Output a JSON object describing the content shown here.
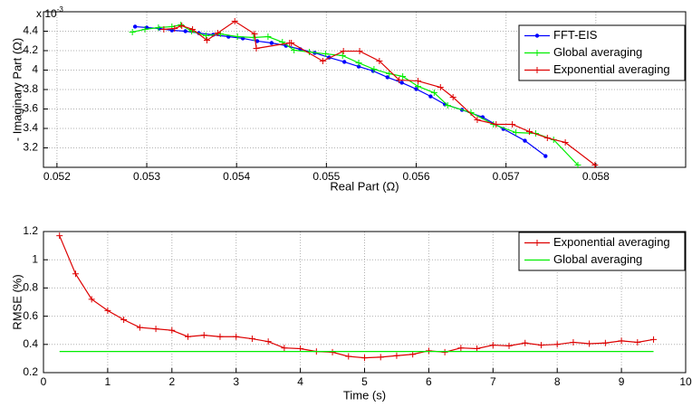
{
  "chart_data": [
    {
      "type": "line",
      "xlabel": "Real Part (Ω)",
      "ylabel": "- Imaginary Part (Ω)",
      "y_multiplier": {
        "base": "x 10",
        "exponent": "-3"
      },
      "xlim": [
        0.05185,
        0.059
      ],
      "ylim": [
        0.003,
        0.0046
      ],
      "xticks": [
        0.052,
        0.053,
        0.054,
        0.055,
        0.056,
        0.057,
        0.058
      ],
      "yticks": [
        {
          "value": 0.0032,
          "label": "3.2"
        },
        {
          "value": 0.0034,
          "label": "3.4"
        },
        {
          "value": 0.0036,
          "label": "3.6"
        },
        {
          "value": 0.0038,
          "label": "3.8"
        },
        {
          "value": 0.004,
          "label": "4"
        },
        {
          "value": 0.0042,
          "label": "4.2"
        },
        {
          "value": 0.0044,
          "label": "4.4"
        }
      ],
      "grid": true,
      "legend": "northeast",
      "series": [
        {
          "name": "FFT-EIS",
          "color": "#0000ff",
          "marker": "dot",
          "x": [
            0.05287,
            0.053,
            0.05314,
            0.05328,
            0.05343,
            0.05358,
            0.05374,
            0.05391,
            0.05407,
            0.05423,
            0.05439,
            0.05455,
            0.05471,
            0.05487,
            0.05503,
            0.0552,
            0.05536,
            0.05552,
            0.05568,
            0.05584,
            0.056,
            0.05616,
            0.05632,
            0.05651,
            0.05674,
            0.05697,
            0.05721,
            0.05744
          ],
          "values": [
            0.004447,
            0.004437,
            0.004428,
            0.004409,
            0.0044,
            0.004381,
            0.004363,
            0.004344,
            0.004326,
            0.004298,
            0.004279,
            0.004251,
            0.004214,
            0.004177,
            0.00413,
            0.004084,
            0.004037,
            0.003991,
            0.003926,
            0.00387,
            0.003805,
            0.00373,
            0.003647,
            0.003591,
            0.003516,
            0.003395,
            0.003274,
            0.003116
          ]
        },
        {
          "name": "Global averaging",
          "color": "#00ee00",
          "marker": "plus",
          "x": [
            0.05284,
            0.05298,
            0.05313,
            0.05328,
            0.05338,
            0.0535,
            0.05366,
            0.05382,
            0.05401,
            0.05419,
            0.05435,
            0.05451,
            0.05464,
            0.05481,
            0.05499,
            0.05518,
            0.05536,
            0.05553,
            0.0557,
            0.05585,
            0.05602,
            0.0562,
            0.05635,
            0.05661,
            0.05686,
            0.05711,
            0.05733,
            0.05753,
            0.0578
          ],
          "values": [
            0.004391,
            0.004419,
            0.004437,
            0.004447,
            0.004465,
            0.0044,
            0.004353,
            0.004372,
            0.004344,
            0.004335,
            0.004344,
            0.004288,
            0.004205,
            0.004186,
            0.004167,
            0.004149,
            0.004074,
            0.004009,
            0.003963,
            0.003935,
            0.003833,
            0.003767,
            0.003637,
            0.003563,
            0.003442,
            0.003358,
            0.003349,
            0.003284,
            0.003023
          ]
        },
        {
          "name": "Exponential averaging",
          "color": "#dd0000",
          "marker": "plus",
          "x": [
            0.05319,
            0.05331,
            0.05339,
            0.05351,
            0.05367,
            0.05379,
            0.05398,
            0.0542,
            0.05422,
            0.05459,
            0.05461,
            0.05496,
            0.05519,
            0.05537,
            0.05559,
            0.05581,
            0.05602,
            0.05627,
            0.05641,
            0.05668,
            0.05689,
            0.05707,
            0.05726,
            0.05746,
            0.05766,
            0.05799
          ],
          "values": [
            0.004419,
            0.004428,
            0.004456,
            0.004419,
            0.004307,
            0.004381,
            0.004502,
            0.004372,
            0.004223,
            0.004279,
            0.004279,
            0.004093,
            0.004195,
            0.004195,
            0.004093,
            0.003898,
            0.003888,
            0.003823,
            0.003721,
            0.003488,
            0.003442,
            0.003442,
            0.003367,
            0.003302,
            0.003256,
            0.003023
          ]
        }
      ]
    },
    {
      "type": "line",
      "xlabel": "Time (s)",
      "ylabel": "RMSE (%)",
      "xlim": [
        0,
        10
      ],
      "ylim": [
        0.2,
        1.2
      ],
      "xticks": [
        0,
        1,
        2,
        3,
        4,
        5,
        6,
        7,
        8,
        9,
        10
      ],
      "yticks": [
        0.2,
        0.4,
        0.6,
        0.8,
        1,
        1.2
      ],
      "grid": true,
      "legend": "northeast",
      "series": [
        {
          "name": "Exponential averaging",
          "color": "#dd0000",
          "marker": "plus",
          "x": [
            0.25,
            0.5,
            0.75,
            1,
            1.25,
            1.5,
            1.75,
            2,
            2.25,
            2.5,
            2.75,
            3,
            3.25,
            3.5,
            3.75,
            4,
            4.25,
            4.5,
            4.75,
            5,
            5.25,
            5.5,
            5.75,
            6,
            6.25,
            6.5,
            6.75,
            7,
            7.25,
            7.5,
            7.75,
            8,
            8.25,
            8.5,
            8.75,
            9,
            9.25,
            9.5
          ],
          "values": [
            1.17,
            0.9,
            0.72,
            0.64,
            0.575,
            0.52,
            0.51,
            0.5,
            0.455,
            0.465,
            0.455,
            0.455,
            0.44,
            0.42,
            0.375,
            0.37,
            0.35,
            0.345,
            0.315,
            0.305,
            0.31,
            0.32,
            0.33,
            0.355,
            0.345,
            0.375,
            0.37,
            0.395,
            0.39,
            0.41,
            0.395,
            0.4,
            0.415,
            0.405,
            0.41,
            0.425,
            0.415,
            0.435
          ]
        },
        {
          "name": "Global averaging",
          "color": "#00ee00",
          "marker": "none",
          "x": [
            0.25,
            9.5
          ],
          "values": [
            0.35,
            0.35
          ]
        }
      ]
    }
  ]
}
